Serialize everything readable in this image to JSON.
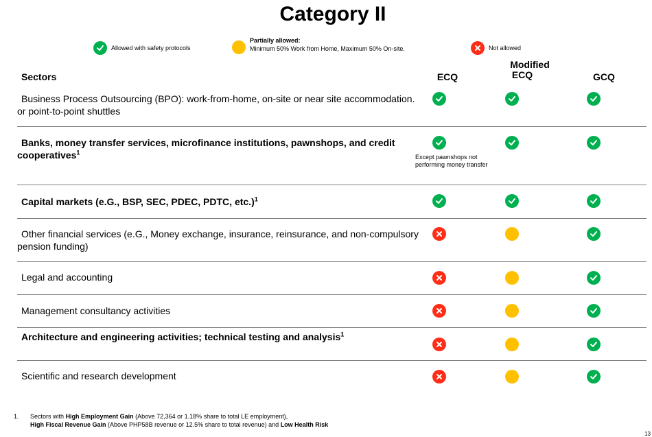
{
  "title": "Category II",
  "legend": {
    "allowed": {
      "icon": "check-icon",
      "text": "Allowed with safety protocols"
    },
    "partial": {
      "icon": "partial-icon",
      "title": "Partially allowed:",
      "text": "Minimum 50% Work from Home,  Maximum 50% On-site."
    },
    "not_allowed": {
      "icon": "cross-icon",
      "text": "Not allowed"
    }
  },
  "headers": {
    "sectors": "Sectors",
    "ecq": "ECQ",
    "mecq_line1": "Modified",
    "mecq_line2": "ECQ",
    "gcq": "GCQ"
  },
  "rows": [
    {
      "label": "Business Process Outsourcing (BPO): work-from-home, on-site or near site accommodation. or point-to-point shuttles",
      "sup": "",
      "bold": false,
      "ecq": "check",
      "mecq": "check",
      "gcq": "check"
    },
    {
      "label": "Banks, money transfer services, microfinance institutions, pawnshops, and credit cooperatives",
      "sup": "1",
      "bold": true,
      "ecq": "check",
      "mecq": "check",
      "gcq": "check",
      "note": "Except pawnshops not performing money transfer"
    },
    {
      "label": "Capital markets (e.G., BSP, SEC, PDEC, PDTC, etc.)",
      "sup": "1",
      "bold": true,
      "ecq": "check",
      "mecq": "check",
      "gcq": "check"
    },
    {
      "label": "Other financial services (e.G., Money exchange, insurance, reinsurance, and non-compulsory pension funding)",
      "sup": "",
      "bold": false,
      "ecq": "cross",
      "mecq": "partial",
      "gcq": "check"
    },
    {
      "label": "Legal and accounting",
      "sup": "",
      "bold": false,
      "ecq": "cross",
      "mecq": "partial",
      "gcq": "check"
    },
    {
      "label": "Management consultancy activities",
      "sup": "",
      "bold": false,
      "ecq": "cross",
      "mecq": "partial",
      "gcq": "check"
    },
    {
      "label": "Architecture and engineering activities; technical testing and analysis",
      "sup": "1",
      "bold": true,
      "ecq": "cross",
      "mecq": "partial",
      "gcq": "check"
    },
    {
      "label": "Scientific and research development",
      "sup": "",
      "bold": false,
      "ecq": "cross",
      "mecq": "partial",
      "gcq": "check"
    }
  ],
  "footnote": {
    "number": "1.",
    "p1": "Sectors with ",
    "b1": "High Employment Gain",
    "p2": " (Above 72,364 or 1.18% share to total LE employment),",
    "b2": "High Fiscal Revenue Gain",
    "p3": " (Above PHP58B revenue or 12.5% share to total revenue) and ",
    "b3": "Low Health Risk"
  },
  "page_number": "13",
  "colors": {
    "check": "#00b050",
    "cross": "#ff2d16",
    "partial": "#ffc000"
  }
}
